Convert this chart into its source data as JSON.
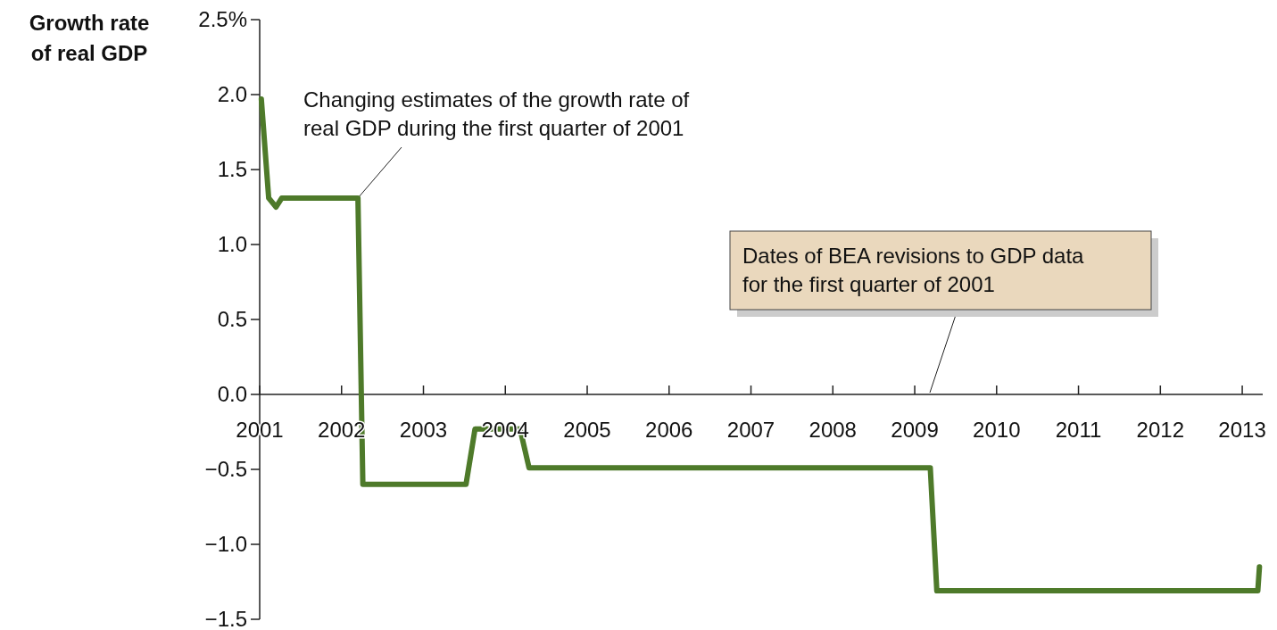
{
  "chart_data": {
    "type": "line",
    "ylabel": "Growth rate of real GDP",
    "xlim": [
      2001,
      2013.25
    ],
    "ylim": [
      -1.5,
      2.5
    ],
    "xticks": [
      2001,
      2002,
      2003,
      2004,
      2005,
      2006,
      2007,
      2008,
      2009,
      2010,
      2011,
      2012,
      2013
    ],
    "yticks": [
      {
        "value": -1.5,
        "label": "−1.5"
      },
      {
        "value": -1,
        "label": "−1.0"
      },
      {
        "value": -0.5,
        "label": "−0.5"
      },
      {
        "value": 0,
        "label": "0.0"
      },
      {
        "value": 0.5,
        "label": "0.5"
      },
      {
        "value": 1,
        "label": "1.0"
      },
      {
        "value": 1.5,
        "label": "1.5"
      },
      {
        "value": 2,
        "label": "2.0"
      },
      {
        "value": 2.5,
        "label": "2.5%"
      }
    ],
    "grid": false,
    "marker": "none",
    "line_style": "solid",
    "x": [
      2001.02,
      2001.11,
      2001.2,
      2001.27,
      2002.2,
      2002.26,
      2003.52,
      2003.63,
      2004.18,
      2004.29,
      2009.19,
      2009.27,
      2013.19,
      2013.21
    ],
    "series": [
      {
        "color": "#4e7a2a",
        "values": [
          1.97,
          1.31,
          1.25,
          1.31,
          1.31,
          -0.6,
          -0.6,
          -0.23,
          -0.23,
          -0.49,
          -0.49,
          -1.31,
          -1.31,
          -1.15
        ]
      }
    ],
    "annotations": [
      {
        "text": "Changing estimates of the growth rate of real GDP during the first quarter of 2001",
        "x": 2002.2,
        "y": 1.31
      },
      "Dates of BEA revisions to GDP data for the first quarter of 2001"
    ]
  }
}
